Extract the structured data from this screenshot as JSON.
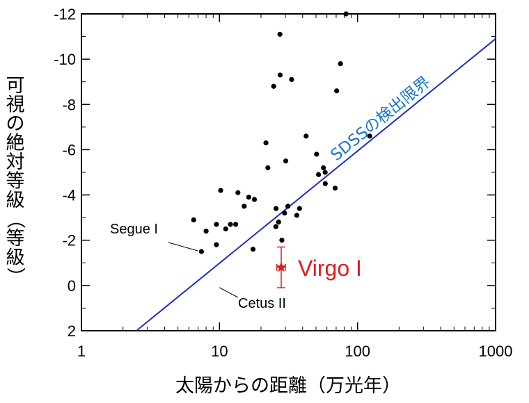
{
  "chart_data": {
    "type": "scatter",
    "xlabel": "太陽からの距離（万光年）",
    "ylabel": "可視の絶対等級（等級）",
    "x_scale": "log",
    "xlim": [
      1,
      1000
    ],
    "ylim": [
      2,
      -12
    ],
    "x_ticks": [
      1,
      10,
      100,
      1000
    ],
    "x_tick_labels": [
      "1",
      "10",
      "100",
      "1000"
    ],
    "y_ticks": [
      -12,
      -10,
      -8,
      -6,
      -4,
      -2,
      0,
      2
    ],
    "y_tick_labels": [
      "-12",
      "-10",
      "-8",
      "-6",
      "-4",
      "-2",
      "0",
      "2"
    ],
    "points": [
      {
        "x": 6.5,
        "y": -2.9
      },
      {
        "x": 7.4,
        "y": -1.5
      },
      {
        "x": 8.0,
        "y": -2.4
      },
      {
        "x": 9.5,
        "y": -2.7
      },
      {
        "x": 9.5,
        "y": -1.8
      },
      {
        "x": 10.2,
        "y": -4.2
      },
      {
        "x": 11.1,
        "y": -2.5
      },
      {
        "x": 12.0,
        "y": -2.7
      },
      {
        "x": 13.1,
        "y": -2.7
      },
      {
        "x": 13.6,
        "y": -4.1
      },
      {
        "x": 15.1,
        "y": -3.5
      },
      {
        "x": 16.3,
        "y": -3.9
      },
      {
        "x": 17.5,
        "y": -1.6
      },
      {
        "x": 17.9,
        "y": -3.8
      },
      {
        "x": 21.7,
        "y": -6.3
      },
      {
        "x": 22.4,
        "y": -5.2
      },
      {
        "x": 24.7,
        "y": -8.8
      },
      {
        "x": 25.6,
        "y": -2.6
      },
      {
        "x": 25.7,
        "y": -3.4
      },
      {
        "x": 26.8,
        "y": -2.8
      },
      {
        "x": 27.4,
        "y": -11.1
      },
      {
        "x": 27.5,
        "y": -9.3
      },
      {
        "x": 28.3,
        "y": -2.0
      },
      {
        "x": 29.6,
        "y": -3.2
      },
      {
        "x": 30.2,
        "y": -5.5
      },
      {
        "x": 31.3,
        "y": -3.5
      },
      {
        "x": 33.3,
        "y": -9.1
      },
      {
        "x": 36.3,
        "y": -3.1
      },
      {
        "x": 38.0,
        "y": -3.4
      },
      {
        "x": 42.4,
        "y": -6.6
      },
      {
        "x": 50.5,
        "y": -5.8
      },
      {
        "x": 52.2,
        "y": -4.9
      },
      {
        "x": 56.6,
        "y": -5.2
      },
      {
        "x": 58.3,
        "y": -5.0
      },
      {
        "x": 58.4,
        "y": -4.5
      },
      {
        "x": 68.8,
        "y": -4.3
      },
      {
        "x": 70.6,
        "y": -8.6
      },
      {
        "x": 75.2,
        "y": -9.8
      },
      {
        "x": 82.6,
        "y": -12.0
      },
      {
        "x": 122.6,
        "y": -6.6
      }
    ],
    "detection_limit": {
      "label": "SDSSの検出限界",
      "from": {
        "x": 2.5,
        "y": 2.0
      },
      "to": {
        "x": 1000,
        "y": -10.9
      }
    },
    "highlight": {
      "label": "Virgo I",
      "x": 28,
      "y": -0.8,
      "yerr": [
        0.9,
        0.9
      ],
      "xerr": [
        2,
        2
      ]
    },
    "annotations": [
      {
        "label": "Segue I",
        "x": 7.4,
        "y": -1.5
      },
      {
        "label": "Cetus II",
        "x": 9.5,
        "y": 0.0
      }
    ],
    "colors": {
      "points": "#000000",
      "limit_line": "#1c2ec4",
      "limit_label": "#1a78c2",
      "highlight": "#e01b1b"
    }
  }
}
